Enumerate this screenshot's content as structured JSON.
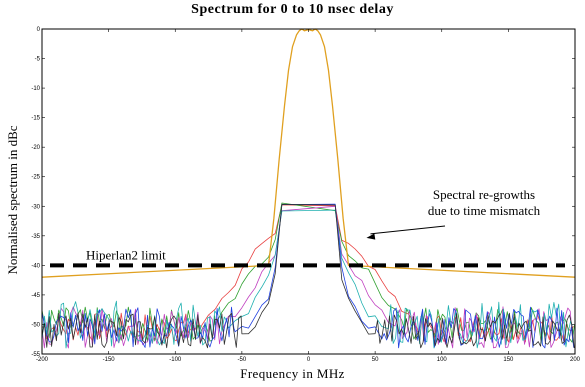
{
  "chart_data": {
    "type": "line",
    "title": "Spectrum for 0 to 10 nsec delay",
    "xlabel": "Frequency in MHz",
    "ylabel": "Normalised spectrum in dBc",
    "xlim": [
      -200,
      200
    ],
    "ylim": [
      -55,
      0
    ],
    "xticks": [
      -200,
      -150,
      -100,
      -50,
      0,
      50,
      100,
      150,
      200
    ],
    "yticks": [
      0,
      -5,
      -10,
      -15,
      -20,
      -25,
      -30,
      -35,
      -40,
      -45,
      -50,
      -55
    ],
    "grid": false,
    "legend": "none",
    "limit_line": {
      "label": "Hiperlan2 limit",
      "y": -40,
      "style": "dashed",
      "color": "#000000"
    },
    "annotation": {
      "text_lines": [
        "Spectral re-growths",
        "due to time mismatch"
      ],
      "arrow_to": {
        "x": 42,
        "y": -35
      }
    },
    "main_lobe": {
      "color": "#e0a020",
      "x": [
        -200,
        -30,
        -26,
        -22,
        -18,
        -15,
        -12,
        -9,
        -7,
        -5,
        -3,
        0,
        3,
        5,
        7,
        9,
        12,
        15,
        18,
        22,
        26,
        30,
        200
      ],
      "y": [
        -42,
        -40,
        -32,
        -22,
        -13,
        -7,
        -3,
        -1,
        -0.3,
        0,
        -0.3,
        -0.1,
        -0.3,
        0,
        -0.3,
        -1,
        -3,
        -7,
        -13,
        -22,
        -32,
        -40,
        -42
      ]
    },
    "series": [
      {
        "color": "#e84040",
        "shoulder": {
          "x": [
            20,
            25,
            30,
            35,
            40,
            45,
            50,
            55,
            60,
            65,
            70,
            75,
            80
          ],
          "y": [
            -30,
            -35,
            -36,
            -37,
            -38,
            -40,
            -41,
            -43,
            -44,
            -46,
            -47,
            -48,
            -50
          ]
        },
        "noise": [
          -48,
          -53
        ]
      },
      {
        "color": "#30a030",
        "shoulder": {
          "x": [
            20,
            25,
            30,
            35,
            40,
            45,
            50,
            55,
            60,
            65,
            70
          ],
          "y": [
            -30,
            -36,
            -38,
            -39,
            -40,
            -41,
            -43,
            -45,
            -47,
            -48,
            -50
          ]
        },
        "noise": [
          -47,
          -53
        ]
      },
      {
        "color": "#c040c0",
        "shoulder": {
          "x": [
            20,
            25,
            30,
            35,
            40,
            45,
            50,
            55,
            60,
            65
          ],
          "y": [
            -30,
            -38,
            -40,
            -41,
            -43,
            -45,
            -47,
            -48,
            -49,
            -51
          ]
        },
        "noise": [
          -47,
          -54
        ]
      },
      {
        "color": "#20b0b0",
        "shoulder": {
          "x": [
            20,
            25,
            30,
            35,
            40,
            45,
            50,
            55,
            60
          ],
          "y": [
            -30,
            -39,
            -42,
            -44,
            -46,
            -48,
            -49,
            -50,
            -51
          ]
        },
        "noise": [
          -46,
          -54
        ]
      },
      {
        "color": "#2040e0",
        "shoulder": {
          "x": [
            20,
            25,
            30,
            35,
            40,
            45,
            50,
            55
          ],
          "y": [
            -30,
            -41,
            -45,
            -47,
            -49,
            -50,
            -51,
            -52
          ]
        },
        "noise": [
          -47,
          -54
        ]
      },
      {
        "color": "#303030",
        "shoulder": {
          "x": [
            20,
            25,
            30,
            35,
            40,
            45,
            50
          ],
          "y": [
            -30,
            -42,
            -46,
            -48,
            -50,
            -51,
            -52
          ]
        },
        "noise": [
          -48,
          -54
        ]
      }
    ]
  }
}
